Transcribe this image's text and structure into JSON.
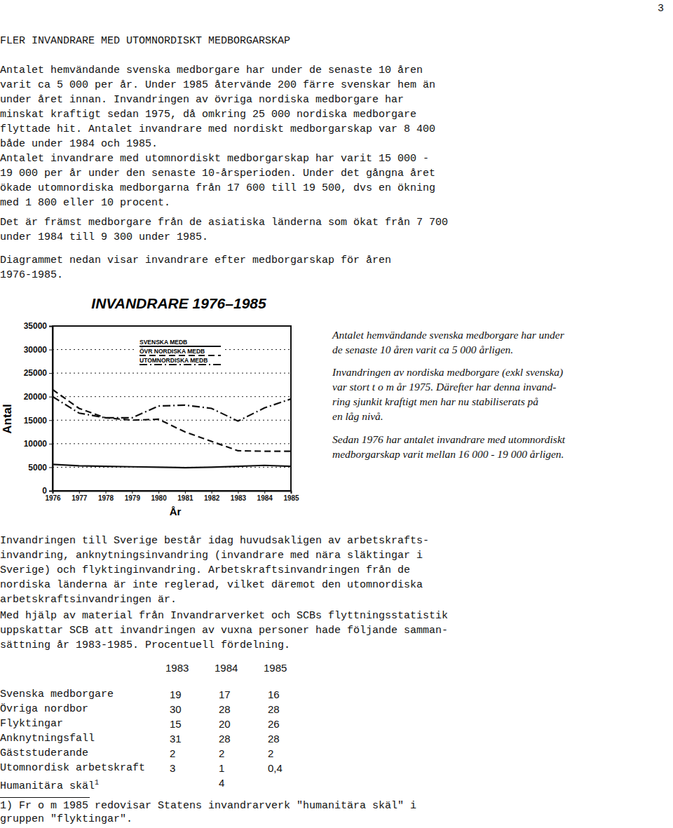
{
  "page_number": "3",
  "heading": "FLER INVANDRARE MED UTOMNORDISKT MEDBORGARSKAP",
  "paragraphs": [
    [
      "Antalet hemvändande svenska medborgare har under de senaste 10 åren",
      "varit ca 5 000 per år. Under 1985 återvände 200 färre svenskar hem än",
      "under året innan. Invandringen av övriga nordiska medborgare har",
      "minskat kraftigt sedan 1975, då omkring 25 000 nordiska medborgare",
      "flyttade hit. Antalet invandrare med nordiskt medborgarskap var 8 400",
      "både under 1984 och 1985."
    ],
    [
      "Antalet invandrare med utomnordiskt medborgarskap har varit 15 000 -",
      "19 000 per år under den senaste 10-årsperioden. Under det gångna året",
      "ökade utomnordiska medborgarna från 17 600 till 19 500, dvs en ökning",
      "med 1 800 eller 10 procent."
    ],
    [
      "Det är främst medborgare från de asiatiska länderna som ökat från 7 700",
      "under 1984 till 9 300 under 1985."
    ],
    [
      "Diagrammet nedan visar invandrare efter medborgarskap för åren",
      "1976-1985."
    ]
  ],
  "chart_data": {
    "type": "line",
    "title": "INVANDRARE 1976–1985",
    "x_label": "År",
    "y_label": "Antal",
    "x": [
      1976,
      1977,
      1978,
      1979,
      1980,
      1981,
      1982,
      1983,
      1984,
      1985
    ],
    "xlim": [
      1976,
      1985
    ],
    "xticks": [
      1976,
      1977,
      1978,
      1979,
      1980,
      1981,
      1982,
      1983,
      1984,
      1985
    ],
    "ylim": [
      0,
      35000
    ],
    "yticks": [
      0,
      5000,
      10000,
      15000,
      20000,
      25000,
      30000,
      35000
    ],
    "grid": true,
    "legend": "upper center",
    "series": [
      {
        "name": "SVENSKA MEDB",
        "color": "#111111",
        "line_style": "solid",
        "values": [
          5600,
          5300,
          5200,
          5100,
          5000,
          4900,
          5000,
          5200,
          5400,
          5200
        ]
      },
      {
        "name": "ÖVR NORDISKA MEDB",
        "color": "#111111",
        "line_style": "dashed",
        "values": [
          21500,
          17500,
          15500,
          15000,
          15200,
          12500,
          10500,
          8500,
          8400,
          8400
        ]
      },
      {
        "name": "UTOMNORDISKA MEDB",
        "color": "#111111",
        "line_style": "dashdot",
        "values": [
          20000,
          16500,
          15500,
          15500,
          18000,
          18200,
          17500,
          14800,
          17600,
          19500
        ]
      }
    ]
  },
  "side_notes": [
    [
      "Antalet hemvändande svenska medborgare har under",
      "de senaste 10 åren varit ca 5 000 årligen."
    ],
    [
      "Invandringen av nordiska medborgare (exkl svenska)",
      "var stort t o m år 1975. Därefter har denna invand-",
      "ring sjunkit kraftigt men har nu stabiliserats på",
      "en låg nivå."
    ],
    [
      "Sedan 1976 har antalet invandrare med utomnordiskt",
      "medborgarskap varit mellan 16 000 - 19 000 årligen."
    ]
  ],
  "paragraphs_after": [
    [
      "Invandringen till Sverige består idag huvudsakligen av arbetskrafts-",
      "invandring, anknytningsinvandring (invandrare med nära släktingar i",
      "Sverige) och flyktinginvandring. Arbetskraftsinvandringen från de",
      "nordiska länderna är inte reglerad, vilket däremot den utomnordiska",
      "arbetskraftsinvandringen är."
    ],
    [
      "Med hjälp av material från Invandrarverket och SCBs flyttningsstatistik",
      "uppskattar SCB att invandringen av vuxna personer hade följande samman-",
      "sättning år 1983-1985. Procentuell fördelning."
    ]
  ],
  "table": {
    "columns": [
      "1983",
      "1984",
      "1985"
    ],
    "rows": [
      {
        "label": "Svenska medborgare",
        "values": [
          "19",
          "17",
          "16"
        ]
      },
      {
        "label": "Övriga nordbor",
        "values": [
          "30",
          "28",
          "28"
        ]
      },
      {
        "label": "Flyktingar",
        "values": [
          "15",
          "20",
          "26"
        ]
      },
      {
        "label": "Anknytningsfall",
        "values": [
          "31",
          "28",
          "28"
        ]
      },
      {
        "label": "Gäststuderande",
        "values": [
          "2",
          "2",
          "2"
        ]
      },
      {
        "label": "Utomnordisk arbetskraft",
        "values": [
          "3",
          "1",
          "0,4"
        ]
      },
      {
        "label": "Humanitära skäl",
        "note": "1",
        "values": [
          null,
          "4",
          null
        ]
      }
    ]
  },
  "footnote": [
    "1) Fr o m 1985 redovisar Statens invandrarverk \"humanitära skäl\" i",
    "gruppen \"flyktingar\"."
  ]
}
